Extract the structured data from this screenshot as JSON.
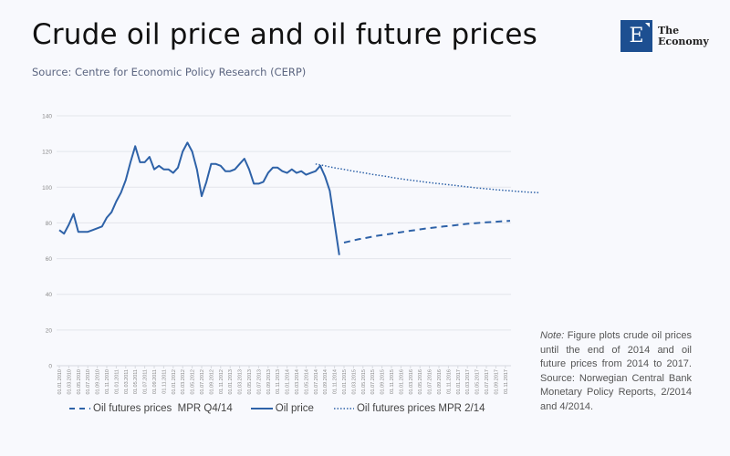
{
  "header": {
    "title": "Crude oil price and oil future prices",
    "subtitle": "Source: Centre for Economic Policy Research (CERP)"
  },
  "logo": {
    "letter": "E",
    "line1": "The",
    "line2": "Economy",
    "color": "#1d4f91"
  },
  "note": {
    "label": "Note:",
    "text": " Figure plots crude oil prices until the end of 2014 and oil future prices from 2014 to 2017. Source: Norwegian Central Bank Monetary Policy Reports, 2/2014 and 4/2014."
  },
  "chart_data": {
    "type": "line",
    "title": "Crude oil price and oil future prices",
    "xlabel": "",
    "ylabel": "",
    "ylim": [
      0,
      140
    ],
    "yticks": [
      0,
      20,
      40,
      60,
      80,
      100,
      120,
      140
    ],
    "grid": true,
    "legend_position": "bottom",
    "x_start": "2010-01",
    "x_end": "2017-12",
    "x_unit": "month",
    "xtick_labels": [
      "01.01.2010",
      "01.03.2010",
      "01.05.2010",
      "01.07.2010",
      "01.09.2010",
      "01.11.2010",
      "01.01.2011",
      "01.03.2011",
      "01.05.2011",
      "01.07.2011",
      "01.09.2011",
      "01.11.2011",
      "01.01.2012",
      "01.03.2012",
      "01.05.2012",
      "01.07.2012",
      "01.09.2012",
      "01.11.2012",
      "01.01.2013",
      "01.03.2013",
      "01.05.2013",
      "01.07.2013",
      "01.09.2013",
      "01.11.2013",
      "01.01.2014",
      "01.03.2014",
      "01.05.2014",
      "01.07.2014",
      "01.09.2014",
      "01.11.2014",
      "01.01.2015",
      "01.03.2015",
      "01.05.2015",
      "01.07.2015",
      "01.09.2015",
      "01.11.2015",
      "01.01.2016",
      "01.03.2016",
      "01.05.2016",
      "01.07.2016",
      "01.09.2016",
      "01.11.2016",
      "01.01.2017",
      "01.03.2017",
      "01.05.2017",
      "01.07.2017",
      "01.09.2017",
      "01.11.2017"
    ],
    "series": [
      {
        "name": "Oil futures prices  MPR Q4/14",
        "style": "dashed",
        "color": "#2e62a8",
        "start_month_index": 60,
        "values": [
          69,
          69.6,
          70.2,
          70.8,
          71.3,
          71.8,
          72.3,
          72.8,
          73.2,
          73.6,
          74.0,
          74.4,
          74.8,
          75.2,
          75.6,
          76.0,
          76.4,
          76.8,
          77.1,
          77.4,
          77.7,
          78.0,
          78.3,
          78.6,
          78.9,
          79.2,
          79.5,
          79.7,
          79.9,
          80.1,
          80.3,
          80.5,
          80.7,
          80.9,
          81.0,
          81.2
        ]
      },
      {
        "name": "Oil price",
        "style": "solid",
        "color": "#2e62a8",
        "start_month_index": 0,
        "values": [
          76,
          74,
          79,
          85,
          75,
          75,
          75,
          76,
          77,
          78,
          83,
          86,
          92,
          97,
          104,
          114,
          123,
          114,
          114,
          117,
          110,
          112,
          110,
          110,
          108,
          111,
          120,
          125,
          120,
          110,
          95,
          103,
          113,
          113,
          112,
          109,
          109,
          110,
          113,
          116,
          110,
          102,
          102,
          103,
          108,
          111,
          111,
          109,
          108,
          110,
          108,
          109,
          107,
          108,
          109,
          112,
          106,
          98,
          80,
          62
        ]
      },
      {
        "name": "Oil futures prices MPR 2/14",
        "style": "dotted",
        "color": "#2e62a8",
        "start_month_index": 54,
        "values": [
          113,
          112.5,
          112,
          111.4,
          110.9,
          110.4,
          110,
          109.5,
          109,
          108.6,
          108.1,
          107.7,
          107.2,
          106.8,
          106.4,
          106,
          105.5,
          105.1,
          104.7,
          104.3,
          104,
          103.6,
          103.3,
          102.9,
          102.6,
          102.3,
          102,
          101.7,
          101.4,
          101.1,
          100.8,
          100.5,
          100.2,
          99.9,
          99.6,
          99.4,
          99.1,
          98.9,
          98.6,
          98.4,
          98.2,
          98,
          97.8,
          97.6,
          97.4,
          97.2,
          97.1,
          97
        ]
      }
    ]
  }
}
